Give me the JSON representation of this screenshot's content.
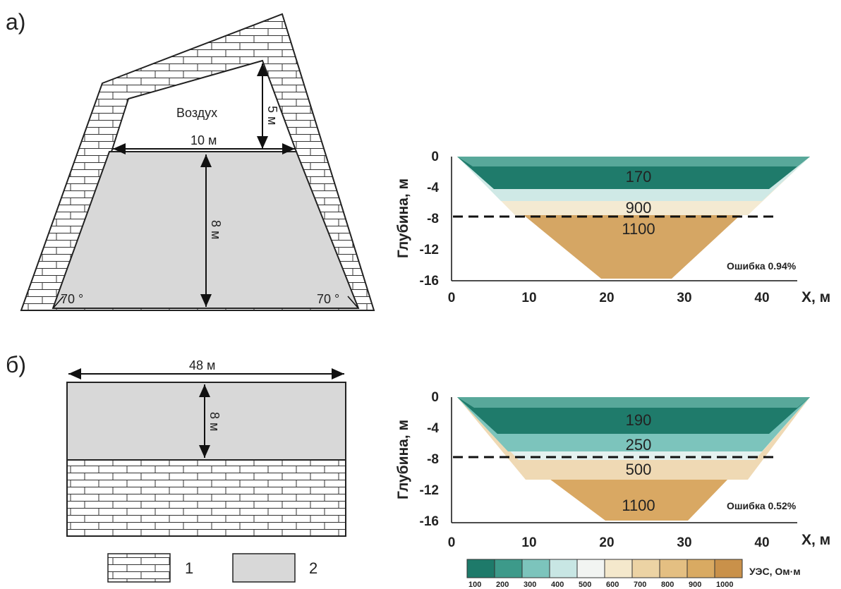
{
  "panel_a": {
    "letter": "а)",
    "air_label": "Воздух",
    "dim_top_width": "10 м",
    "dim_air_height": "5 м",
    "dim_depth": "8 м",
    "angle_left": "70 °",
    "angle_right": "70 °"
  },
  "panel_b": {
    "letter": "б)",
    "dim_width": "48 м",
    "dim_depth": "8 м"
  },
  "legend": {
    "item1_label": "1",
    "item2_label": "2"
  },
  "section_a": {
    "ylabel": "Глубина, м",
    "xlabel": "X, м",
    "y_ticks": [
      "0",
      "-4",
      "-8",
      "-12",
      "-16"
    ],
    "x_ticks": [
      "0",
      "10",
      "20",
      "30",
      "40"
    ],
    "layer_labels": [
      "170",
      "900",
      "1100"
    ],
    "error_text": "Ошибка 0.94%"
  },
  "section_b": {
    "ylabel": "Глубина, м",
    "xlabel": "X, м",
    "y_ticks": [
      "0",
      "-4",
      "-8",
      "-12",
      "-16"
    ],
    "x_ticks": [
      "0",
      "10",
      "20",
      "30",
      "40"
    ],
    "layer_labels": [
      "190",
      "250",
      "500",
      "1100"
    ],
    "error_text": "Ошибка 0.52%"
  },
  "colorbar": {
    "title": "УЭС, Ом·м",
    "values": [
      "100",
      "200",
      "300",
      "400",
      "500",
      "600",
      "700",
      "800",
      "900",
      "1000"
    ],
    "colors": [
      "#1e7a6a",
      "#3d9a8a",
      "#7cc4bc",
      "#c8e6e4",
      "#f2f4f2",
      "#f4e8cc",
      "#ecd3a4",
      "#e4bf82",
      "#d9aa62",
      "#c9914a"
    ]
  }
}
